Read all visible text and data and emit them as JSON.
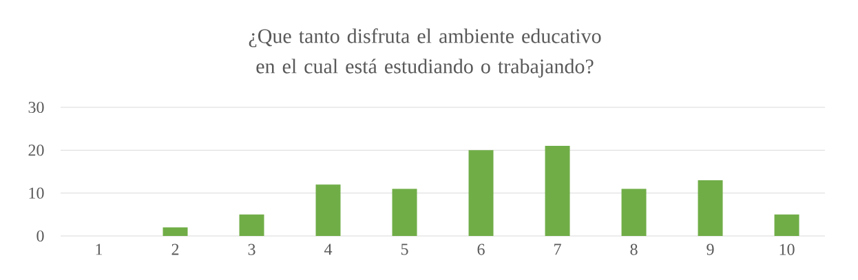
{
  "chart_data": {
    "type": "bar",
    "title": "¿Que tanto disfruta el ambiente educativo en el cual está estudiando o trabajando?",
    "categories": [
      "1",
      "2",
      "3",
      "4",
      "5",
      "6",
      "7",
      "8",
      "9",
      "10"
    ],
    "values": [
      0,
      2,
      5,
      12,
      11,
      20,
      21,
      11,
      13,
      5
    ],
    "color": "#70ad47",
    "ylim": [
      0,
      30
    ],
    "yticks": [
      0,
      10,
      20,
      30
    ],
    "grid": "y"
  }
}
